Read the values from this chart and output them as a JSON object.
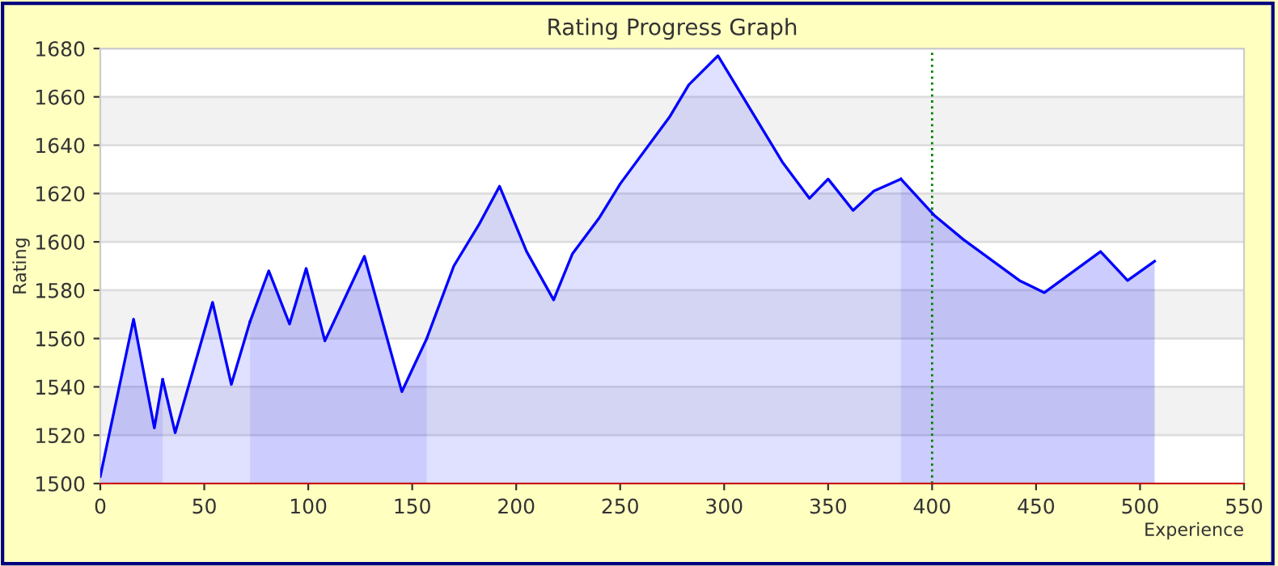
{
  "chart_data": {
    "type": "area",
    "title": "Rating Progress Graph",
    "xlabel": "Experience",
    "ylabel": "Rating",
    "series": [
      {
        "color": "#0000ff",
        "x": [
          0,
          16,
          26,
          30
        ],
        "values": [
          1503,
          1568,
          1523,
          1543
        ]
      },
      {
        "color": "#0000ff",
        "x": [
          30,
          36,
          54,
          63,
          72
        ],
        "values": [
          1543,
          1521,
          1575,
          1541,
          1567
        ]
      },
      {
        "color": "#0000ff",
        "x": [
          72,
          81,
          91,
          99,
          108,
          127,
          145,
          157
        ],
        "values": [
          1567,
          1588,
          1566,
          1589,
          1559,
          1594,
          1538,
          1560
        ]
      },
      {
        "color": "#0000ff",
        "x": [
          157,
          170,
          182,
          192,
          205,
          218,
          227,
          240,
          250,
          274,
          283,
          297,
          328,
          341,
          350,
          362,
          372,
          385
        ],
        "values": [
          1560,
          1590,
          1607,
          1623,
          1596,
          1576,
          1595,
          1610,
          1624,
          1652,
          1665,
          1677,
          1633,
          1618,
          1626,
          1613,
          1621,
          1626
        ]
      },
      {
        "color": "#0000ff",
        "x": [
          385,
          401,
          415,
          442,
          454,
          481,
          494,
          507
        ],
        "values": [
          1626,
          1611,
          1601,
          1584,
          1579,
          1596,
          1584,
          1592
        ]
      }
    ],
    "xlim": [
      0,
      550
    ],
    "xticks": [
      0,
      50,
      100,
      150,
      200,
      250,
      300,
      350,
      400,
      450,
      500,
      550
    ],
    "ylim": [
      1500,
      1680
    ],
    "yticks": [
      1500,
      1520,
      1540,
      1560,
      1580,
      1600,
      1620,
      1640,
      1660,
      1680
    ],
    "grid": "y",
    "ref_lines": [
      {
        "axis": "x",
        "value": 400,
        "color": "#008000",
        "line_style": "dotted"
      }
    ]
  }
}
